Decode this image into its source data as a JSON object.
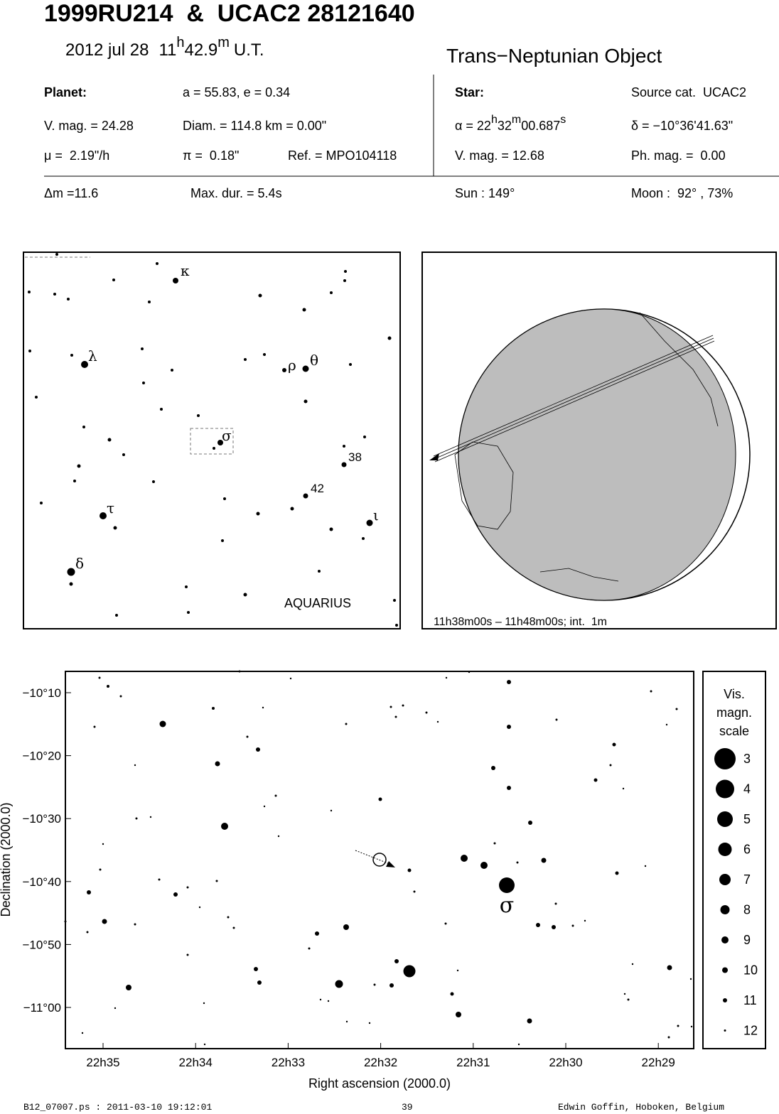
{
  "header": {
    "title": "1999RU214  &  UCAC2 28121640",
    "date": "2012 jul 28",
    "time_h": "11",
    "h": "h",
    "time_m": "42.9",
    "m": "m",
    "ut": "U.T.",
    "object_type": "Trans−Neptunian Object"
  },
  "planet": {
    "label": "Planet:",
    "orbit": "a = 55.83, e = 0.34",
    "vmag": "V. mag. = 24.28",
    "diam": "Diam. = 114.8 km = 0.00\"",
    "motion": "μ =  2.19\"/h",
    "parallax": "π =  0.18\"",
    "ref": "Ref. = MPO104118"
  },
  "star": {
    "label": "Star:",
    "source": "Source cat.  UCAC2",
    "ra": [
      "α = 22",
      "h",
      "32",
      "m",
      "00.687",
      "s"
    ],
    "dec": "δ = −10°36'41.63\"",
    "vmag": "V. mag. = 12.68",
    "phmag": "Ph. mag. =  0.00"
  },
  "event": {
    "dm": "Δm =11.6",
    "maxdur": "Max. dur. = 5.4s",
    "sun": "Sun : 149°",
    "moon": "Moon :  92° , 73%"
  },
  "finder": {
    "labels": [
      "κ",
      "λ",
      "ρ",
      "θ",
      "σ",
      "38",
      "42",
      "τ",
      "ι",
      "δ"
    ],
    "constellation": "AQUARIUS"
  },
  "globe": {
    "caption": "11h38m00s – 11h48m00s; int.  1m"
  },
  "detail": {
    "yticks": [
      "−10°10",
      "−10°20",
      "−10°30",
      "−10°40",
      "−10°50",
      "−11°00"
    ],
    "xticks": [
      "22h35",
      "22h34",
      "22h33",
      "22h32",
      "22h31",
      "22h30",
      "22h29"
    ],
    "xlabel": "Right ascension (2000.0)",
    "ylabel": "Declination (2000.0)",
    "target": "σ"
  },
  "scale": {
    "title": [
      "Vis.",
      "magn.",
      "scale"
    ],
    "magnitudes": [
      3,
      4,
      5,
      6,
      7,
      8,
      9,
      10,
      11,
      12
    ]
  },
  "footer": {
    "file": "B12_07007.ps : 2011-03-10 19:12:01",
    "page": "39",
    "author": "Edwin Goffin, Hoboken, Belgium"
  }
}
